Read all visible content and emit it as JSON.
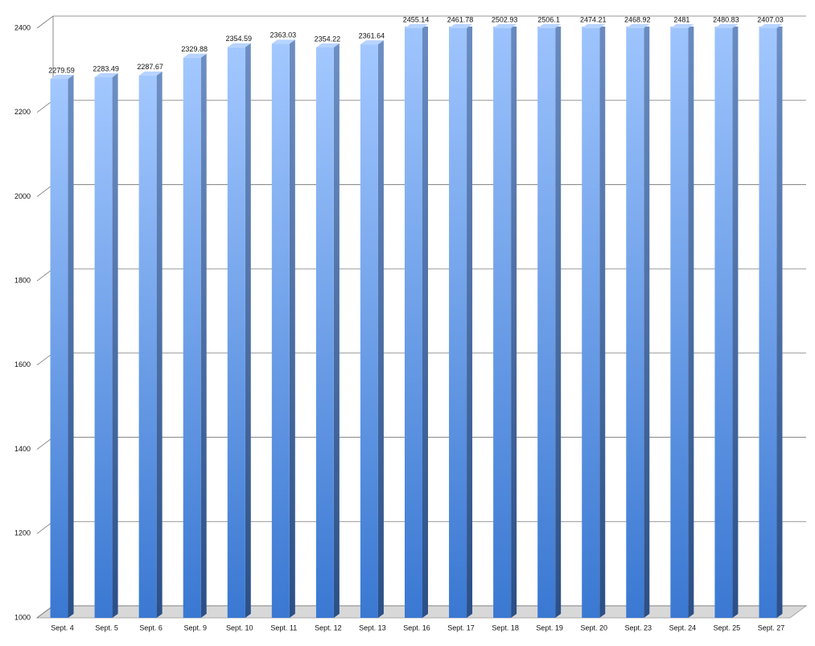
{
  "chart_data": {
    "type": "bar3d",
    "categories": [
      "Sept. 4",
      "Sept. 5",
      "Sept. 6",
      "Sept. 9",
      "Sept. 10",
      "Sept. 11",
      "Sept. 12",
      "Sept. 13",
      "Sept. 16",
      "Sept. 17",
      "Sept. 18",
      "Sept. 19",
      "Sept. 20",
      "Sept. 23",
      "Sept. 24",
      "Sept. 25",
      "Sept. 27"
    ],
    "values": [
      2279.59,
      2283.49,
      2287.67,
      2329.88,
      2354.59,
      2363.03,
      2354.22,
      2361.64,
      2455.14,
      2461.78,
      2502.93,
      2506.1,
      2474.21,
      2468.92,
      2481,
      2480.83,
      2407.03
    ],
    "color": "#5b96e8",
    "ylim": [
      1000,
      2400
    ],
    "yticks": [
      1000,
      1200,
      1400,
      1600,
      1800,
      2000,
      2200,
      2400
    ],
    "grid": true
  }
}
